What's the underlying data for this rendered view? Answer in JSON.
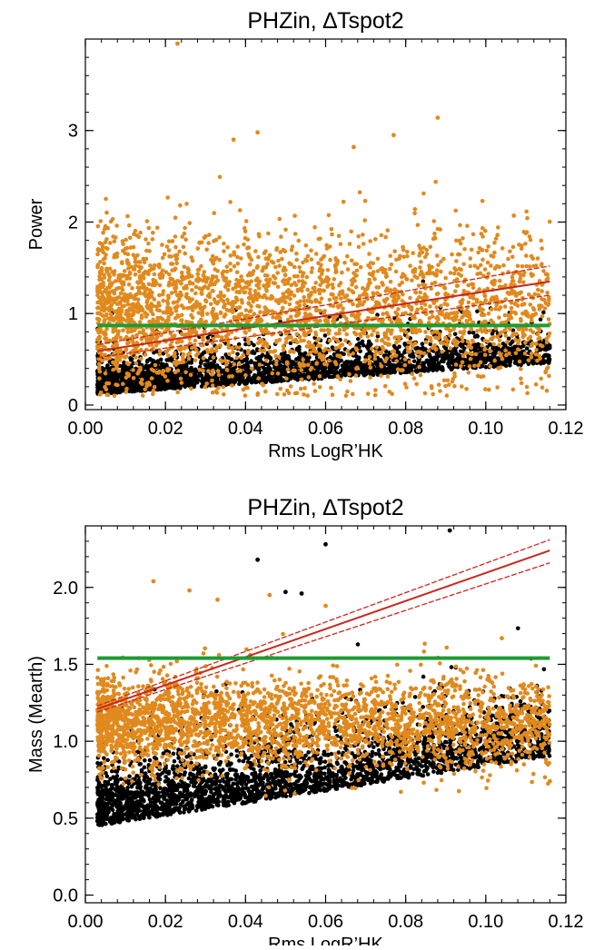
{
  "chart_data": [
    {
      "type": "scatter",
      "title": "PHZin, ∆Tspot2",
      "xlabel": "Rms LogR’HK",
      "ylabel": "Power",
      "xlim": [
        0.0,
        0.12
      ],
      "ylim": [
        -0.05,
        4.0
      ],
      "xticks": [
        "0.00",
        "0.02",
        "0.04",
        "0.06",
        "0.08",
        "0.10",
        "0.12"
      ],
      "yticks": [
        "0",
        "1",
        "2",
        "3"
      ],
      "xtick_values": [
        0.0,
        0.02,
        0.04,
        0.06,
        0.08,
        0.1,
        0.12
      ],
      "ytick_values": [
        0,
        1,
        2,
        3
      ],
      "grid": false,
      "legend": "none",
      "series": [
        {
          "color": "#000000",
          "marker": "dot",
          "distribution": {
            "x_range": [
              0.003,
              0.116
            ],
            "n": 2600,
            "y_base": 0.12,
            "y_slope": 3.0,
            "y_spread": 0.28
          }
        },
        {
          "color": "#e08a1e",
          "marker": "dot",
          "distribution": {
            "x_range": [
              0.003,
              0.116
            ],
            "n": 2800,
            "y_center": 1.05,
            "y_spread": 0.85,
            "y_min": 0.1,
            "y_max": 3.2
          },
          "points": [
            [
              0.023,
              3.95
            ],
            [
              0.043,
              2.98
            ],
            [
              0.037,
              2.9
            ],
            [
              0.067,
              2.82
            ],
            [
              0.088,
              3.14
            ],
            [
              0.077,
              2.95
            ],
            [
              0.107,
              2.07
            ]
          ]
        },
        {
          "color": "#c8281e",
          "type": "line",
          "fit": {
            "x": [
              0.003,
              0.116
            ],
            "y": [
              0.59,
              1.35
            ]
          },
          "band_upper": {
            "x": [
              0.003,
              0.116
            ],
            "y": [
              0.66,
              1.52
            ]
          },
          "band_lower": {
            "x": [
              0.003,
              0.116
            ],
            "y": [
              0.52,
              1.2
            ]
          }
        },
        {
          "color": "#1e9b32",
          "type": "line",
          "fit": {
            "x": [
              0.003,
              0.116
            ],
            "y": [
              0.87,
              0.87
            ]
          }
        }
      ]
    },
    {
      "type": "scatter",
      "title": "PHZin, ∆Tspot2",
      "xlabel": "Rms LogR’HK",
      "ylabel": "Mass (Mearth)",
      "xlim": [
        0.0,
        0.12
      ],
      "ylim": [
        -0.05,
        2.4
      ],
      "xticks": [
        "0.00",
        "0.02",
        "0.04",
        "0.06",
        "0.08",
        "0.10",
        "0.12"
      ],
      "yticks": [
        "0.0",
        "0.5",
        "1.0",
        "1.5",
        "2.0"
      ],
      "xtick_values": [
        0.0,
        0.02,
        0.04,
        0.06,
        0.08,
        0.1,
        0.12
      ],
      "ytick_values": [
        0.0,
        0.5,
        1.0,
        1.5,
        2.0
      ],
      "grid": false,
      "legend": "none",
      "series": [
        {
          "color": "#000000",
          "marker": "dot",
          "distribution": {
            "x_range": [
              0.003,
              0.116
            ],
            "n": 2700,
            "y_base": 0.45,
            "y_slope": 4.0,
            "y_spread": 0.3,
            "y_min": 0.22
          },
          "points": [
            [
              0.043,
              2.18
            ],
            [
              0.06,
              2.28
            ],
            [
              0.091,
              2.37
            ],
            [
              0.05,
              1.97
            ],
            [
              0.054,
              1.96
            ]
          ]
        },
        {
          "color": "#e08a1e",
          "marker": "dot",
          "distribution": {
            "x_range": [
              0.003,
              0.116
            ],
            "n": 2800,
            "y_center": 1.12,
            "y_spread": 0.3,
            "y_min": 0.45,
            "y_max": 1.75
          },
          "points": [
            [
              0.017,
              2.04
            ],
            [
              0.026,
              1.98
            ],
            [
              0.033,
              1.92
            ],
            [
              0.046,
              1.95
            ],
            [
              0.06,
              1.88
            ],
            [
              0.104,
              1.67
            ],
            [
              0.116,
              0.74
            ]
          ]
        },
        {
          "color": "#c8281e",
          "type": "line",
          "fit": {
            "x": [
              0.003,
              0.116
            ],
            "y": [
              1.21,
              2.24
            ]
          },
          "band_upper": {
            "x": [
              0.003,
              0.116
            ],
            "y": [
              1.23,
              2.31
            ]
          },
          "band_lower": {
            "x": [
              0.003,
              0.116
            ],
            "y": [
              1.19,
              2.16
            ]
          }
        },
        {
          "color": "#1e9b32",
          "type": "line",
          "fit": {
            "x": [
              0.003,
              0.116
            ],
            "y": [
              1.54,
              1.54
            ]
          }
        }
      ]
    }
  ]
}
